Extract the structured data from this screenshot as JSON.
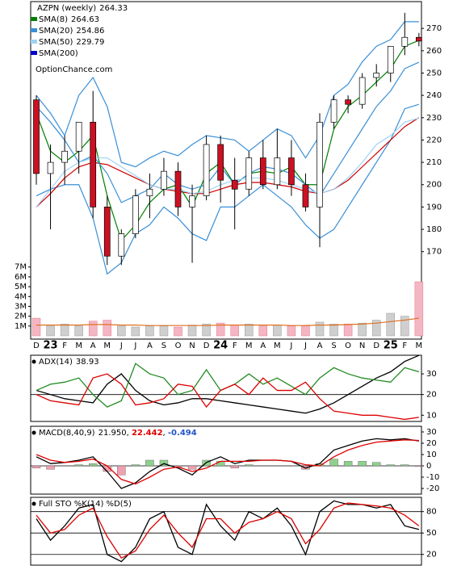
{
  "chart_data": [
    {
      "type": "candlestick",
      "title": "AZPN (weekly)",
      "watermark": "OptionChance.com",
      "categories": [
        "D",
        "23",
        "F",
        "M",
        "A",
        "M",
        "J",
        "J",
        "A",
        "S",
        "O",
        "N",
        "D",
        "24",
        "F",
        "M",
        "A",
        "M",
        "J",
        "J",
        "A",
        "S",
        "O",
        "N",
        "D",
        "25",
        "F",
        "M"
      ],
      "open": [
        238,
        205,
        210,
        215,
        228,
        190,
        168,
        178,
        195,
        198,
        206,
        190,
        195,
        218,
        202,
        198,
        212,
        200,
        212,
        200,
        190,
        228,
        238,
        236,
        248,
        250,
        262,
        266
      ],
      "high": [
        240,
        218,
        222,
        228,
        242,
        195,
        180,
        198,
        205,
        212,
        210,
        200,
        222,
        222,
        212,
        215,
        220,
        225,
        220,
        205,
        232,
        240,
        240,
        250,
        254,
        262,
        277,
        268
      ],
      "low": [
        200,
        180,
        200,
        205,
        185,
        164,
        164,
        176,
        185,
        195,
        186,
        165,
        193,
        192,
        180,
        195,
        198,
        198,
        195,
        188,
        172,
        225,
        232,
        234,
        244,
        246,
        258,
        262
      ],
      "close": [
        205,
        210,
        215,
        228,
        190,
        168,
        178,
        195,
        198,
        206,
        190,
        195,
        218,
        202,
        198,
        212,
        200,
        212,
        200,
        190,
        228,
        238,
        236,
        248,
        250,
        262,
        266,
        264.33
      ],
      "series": [
        {
          "name": "SMA(8)",
          "color": "#008000",
          "values": [
            232,
            215,
            210,
            215,
            222,
            195,
            175,
            182,
            192,
            198,
            200,
            190,
            205,
            210,
            200,
            205,
            206,
            205,
            208,
            200,
            200,
            225,
            235,
            240,
            246,
            252,
            262,
            264.63
          ]
        },
        {
          "name": "SMA(20)",
          "color": "#3a8fd6",
          "values": [
            235,
            228,
            220,
            210,
            213,
            205,
            192,
            195,
            198,
            205,
            200,
            198,
            200,
            208,
            200,
            205,
            208,
            207,
            205,
            200,
            195,
            205,
            215,
            225,
            235,
            242,
            252,
            254.86
          ]
        },
        {
          "name": "SMA(50)",
          "color": "#9fd3f5",
          "values": [
            190,
            198,
            206,
            210,
            212,
            212,
            208,
            204,
            200,
            198,
            198,
            196,
            197,
            200,
            202,
            203,
            203,
            202,
            200,
            198,
            196,
            198,
            203,
            210,
            218,
            222,
            228,
            229.79
          ]
        },
        {
          "name": "SMA(200)",
          "color": "#0000cc"
        }
      ],
      "trend_line": {
        "color": "#cc0000",
        "values": [
          190,
          196,
          203,
          208,
          210,
          209,
          206,
          203,
          200,
          198,
          197,
          196,
          196,
          198,
          200,
          201,
          201,
          200,
          199,
          197,
          196,
          198,
          202,
          208,
          214,
          220,
          226,
          230
        ]
      },
      "upper_band": [
        240,
        232,
        222,
        240,
        248,
        235,
        210,
        208,
        212,
        215,
        213,
        218,
        222,
        221,
        220,
        215,
        220,
        225,
        222,
        212,
        222,
        240,
        245,
        255,
        262,
        265,
        273,
        273
      ],
      "lower_band": [
        195,
        198,
        200,
        200,
        185,
        160,
        165,
        178,
        182,
        190,
        185,
        178,
        175,
        190,
        190,
        195,
        200,
        195,
        190,
        182,
        176,
        180,
        190,
        200,
        210,
        220,
        234,
        236
      ],
      "band_color": "#3a8fd6",
      "ylim": [
        167,
        282
      ],
      "yticks": [
        170,
        180,
        190,
        200,
        210,
        220,
        230,
        240,
        250,
        260,
        270
      ],
      "volume": [
        1800000,
        1000000,
        1200000,
        1000000,
        1500000,
        1600000,
        1000000,
        900000,
        1000000,
        1000000,
        900000,
        1100000,
        1200000,
        1300000,
        1100000,
        1200000,
        1000000,
        1100000,
        1000000,
        1000000,
        1400000,
        1200000,
        1200000,
        1300000,
        1600000,
        2300000,
        2000000,
        5500000
      ],
      "volume_avg": [
        1100000,
        1100000,
        1100000,
        1100000,
        1150000,
        1150000,
        1100000,
        1100000,
        1050000,
        1050000,
        1050000,
        1050000,
        1050000,
        1100000,
        1100000,
        1100000,
        1100000,
        1100000,
        1050000,
        1050000,
        1100000,
        1100000,
        1150000,
        1200000,
        1300000,
        1450000,
        1600000,
        1800000
      ],
      "volume_avg_color": "#e07020",
      "volume_ylim": [
        0,
        7800000
      ],
      "volume_yticks": [
        {
          "value": 1000000,
          "label": "1M"
        },
        {
          "value": 2000000,
          "label": "2M"
        },
        {
          "value": 3000000,
          "label": "3M"
        },
        {
          "value": 4000000,
          "label": "4M"
        },
        {
          "value": 5000000,
          "label": "5M"
        },
        {
          "value": 6000000,
          "label": "6M"
        },
        {
          "value": 7000000,
          "label": "7M"
        }
      ]
    },
    {
      "type": "line",
      "title": "ADX(14)",
      "ylim": [
        7,
        39
      ],
      "yticks": [
        10,
        20,
        30
      ],
      "grid_ticks": [
        20
      ],
      "series": [
        {
          "color": "#000000",
          "values": [
            22,
            20,
            18,
            17,
            16,
            25,
            30,
            22,
            17,
            15,
            16,
            18,
            18,
            17,
            16,
            15,
            14,
            13,
            12,
            11,
            13,
            16,
            20,
            24,
            28,
            31,
            36,
            38.93
          ]
        },
        {
          "color": "#228b22",
          "values": [
            22,
            25,
            26,
            28,
            20,
            14,
            17,
            35,
            30,
            28,
            20,
            22,
            32,
            22,
            25,
            30,
            25,
            28,
            24,
            20,
            28,
            33,
            30,
            28,
            27,
            26,
            33,
            31
          ]
        },
        {
          "color": "#dd0000",
          "values": [
            20,
            17,
            16,
            15,
            28,
            30,
            25,
            15,
            16,
            18,
            25,
            24,
            14,
            22,
            25,
            20,
            28,
            22,
            22,
            26,
            18,
            12,
            11,
            10,
            10,
            9,
            8,
            9
          ]
        }
      ]
    },
    {
      "type": "macd",
      "title": "MACD(8,40,9)",
      "ylim": [
        -25,
        35
      ],
      "yticks": [
        -20,
        -10,
        0,
        10,
        20,
        30
      ],
      "grid_ticks": [
        0
      ],
      "series": [
        {
          "color": "#000000",
          "last_label": "21.950",
          "values": [
            8,
            2,
            3,
            5,
            8,
            -5,
            -20,
            -15,
            -5,
            2,
            -2,
            -8,
            3,
            8,
            2,
            5,
            5,
            5,
            4,
            -2,
            2,
            14,
            18,
            22,
            24,
            23,
            24,
            21.95
          ]
        },
        {
          "color": "#dd0000",
          "last_label": "22.442",
          "values": [
            10,
            5,
            3,
            4,
            6,
            0,
            -12,
            -16,
            -10,
            -3,
            -1,
            -5,
            -2,
            4,
            4,
            4,
            5,
            5,
            4,
            1,
            0,
            8,
            14,
            18,
            21,
            22,
            23,
            22.442
          ]
        }
      ],
      "histogram": {
        "color": "#2255cc",
        "up_color": "#8fd08f",
        "down_color": "#f0a0b0",
        "values": [
          -2,
          -3,
          0,
          1,
          2,
          -5,
          -8,
          1,
          5,
          5,
          -1,
          -3,
          5,
          4,
          -2,
          1,
          0,
          0,
          0,
          -3,
          2,
          6,
          4,
          4,
          3,
          1,
          1,
          -0.494
        ]
      }
    },
    {
      "type": "line",
      "title": "Full STO %K(14) %D(5)",
      "ylim": [
        5,
        100
      ],
      "yticks": [
        20,
        50,
        80
      ],
      "grid_ticks": [
        20,
        50,
        80
      ],
      "series": [
        {
          "color": "#000000",
          "values": [
            70,
            40,
            60,
            85,
            90,
            20,
            10,
            30,
            70,
            80,
            30,
            20,
            90,
            60,
            40,
            80,
            70,
            85,
            60,
            20,
            80,
            95,
            90,
            90,
            85,
            90,
            60,
            55
          ]
        },
        {
          "color": "#dd0000",
          "values": [
            75,
            50,
            55,
            75,
            85,
            45,
            15,
            25,
            55,
            75,
            50,
            30,
            70,
            70,
            50,
            65,
            70,
            80,
            70,
            35,
            55,
            85,
            92,
            90,
            88,
            85,
            75,
            60
          ]
        }
      ]
    }
  ]
}
